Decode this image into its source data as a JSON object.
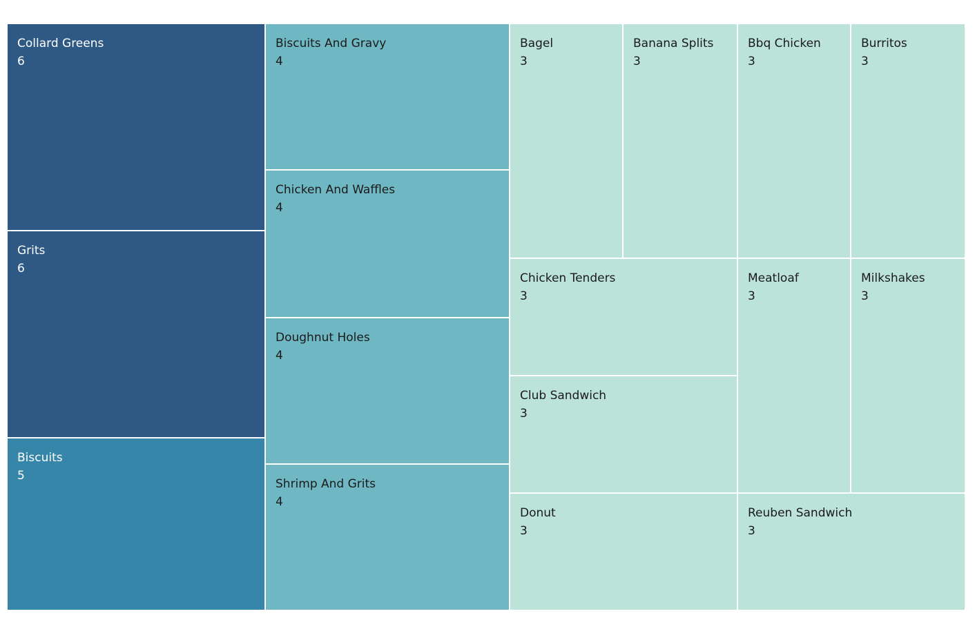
{
  "chart_data": {
    "type": "treemap",
    "title": "",
    "items": [
      {
        "label": "Collard Greens",
        "value": 6
      },
      {
        "label": "Grits",
        "value": 6
      },
      {
        "label": "Biscuits",
        "value": 5
      },
      {
        "label": "Biscuits And Gravy",
        "value": 4
      },
      {
        "label": "Chicken And Waffles",
        "value": 4
      },
      {
        "label": "Doughnut Holes",
        "value": 4
      },
      {
        "label": "Shrimp And Grits",
        "value": 4
      },
      {
        "label": "Bagel",
        "value": 3
      },
      {
        "label": "Banana Splits",
        "value": 3
      },
      {
        "label": "Bbq Chicken",
        "value": 3
      },
      {
        "label": "Burritos",
        "value": 3
      },
      {
        "label": "Chicken Tenders",
        "value": 3
      },
      {
        "label": "Club Sandwich",
        "value": 3
      },
      {
        "label": "Meatloaf",
        "value": 3
      },
      {
        "label": "Milkshakes",
        "value": 3
      },
      {
        "label": "Donut",
        "value": 3
      },
      {
        "label": "Reuben Sandwich",
        "value": 3
      }
    ],
    "color_scale": [
      {
        "value": 6,
        "fill": "#2e5985",
        "text": "#ffffff"
      },
      {
        "value": 5,
        "fill": "#3686aa",
        "text": "#ffffff"
      },
      {
        "value": 4,
        "fill": "#6fb8c3",
        "text": "#1a1a1a"
      },
      {
        "value": 3,
        "fill": "#bce3d9",
        "text": "#1a1a1a"
      }
    ]
  }
}
